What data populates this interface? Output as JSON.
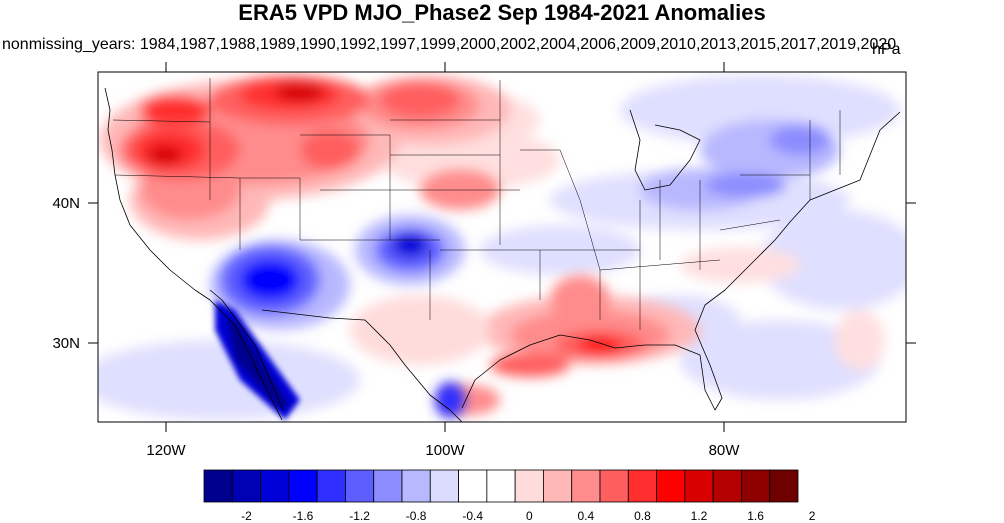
{
  "title": "ERA5 VPD MJO_Phase2 Sep 1984-2021 Anomalies",
  "subtitle": "nonmissing_years: 1984,1987,1988,1989,1990,1992,1997,1999,2000,2002,2004,2006,2009,2010,2013,2015,2017,2019,2020",
  "units": "hPa",
  "map": {
    "lon_range": [
      -125,
      -65
    ],
    "lat_range": [
      24,
      50
    ],
    "x_ticks": [
      "120W",
      "100W",
      "80W"
    ],
    "y_ticks": [
      "40N",
      "30N"
    ]
  },
  "colorbar": {
    "labels": [
      "-2",
      "-1.6",
      "-1.2",
      "-0.8",
      "-0.4",
      "0",
      "0.4",
      "0.8",
      "1.2",
      "1.6",
      "2"
    ],
    "colors": [
      "#00008f",
      "#0000b4",
      "#0000d8",
      "#0000ff",
      "#2f2fff",
      "#5e5eff",
      "#8c8cff",
      "#b8b8ff",
      "#dcdcff",
      "#ffffff",
      "#ffffff",
      "#ffdcdc",
      "#ffb8b8",
      "#ff8c8c",
      "#ff5e5e",
      "#ff2f2f",
      "#ff0000",
      "#d80000",
      "#b40000",
      "#8f0000",
      "#6e0000"
    ]
  },
  "anomaly_regions": [
    {
      "name": "Pacific Northwest / Northern Rockies",
      "sign": "positive"
    },
    {
      "name": "Northern Plains",
      "sign": "positive"
    },
    {
      "name": "Gulf Coast / Louisiana",
      "sign": "positive"
    },
    {
      "name": "Southwest / Baja",
      "sign": "negative"
    },
    {
      "name": "Northeast / New England",
      "sign": "negative"
    }
  ]
}
